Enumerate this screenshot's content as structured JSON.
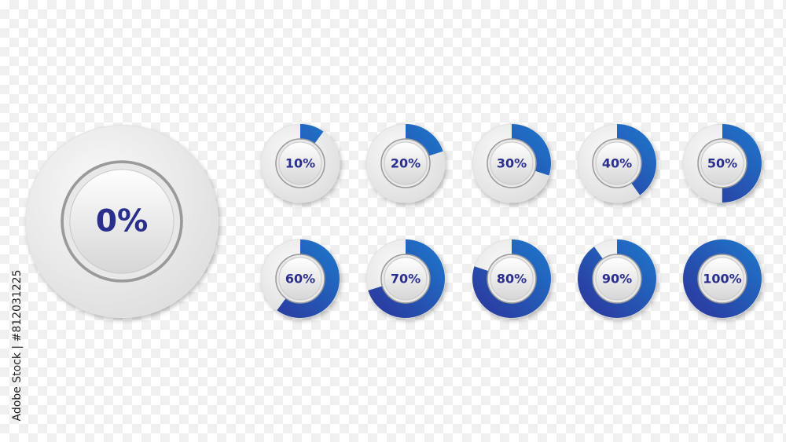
{
  "gauges": [
    {
      "value": 0,
      "label": "0%"
    },
    {
      "value": 10,
      "label": "10%"
    },
    {
      "value": 20,
      "label": "20%"
    },
    {
      "value": 30,
      "label": "30%"
    },
    {
      "value": 40,
      "label": "40%"
    },
    {
      "value": 50,
      "label": "50%"
    },
    {
      "value": 60,
      "label": "60%"
    },
    {
      "value": 70,
      "label": "70%"
    },
    {
      "value": 80,
      "label": "80%"
    },
    {
      "value": 90,
      "label": "90%"
    },
    {
      "value": 100,
      "label": "100%"
    }
  ],
  "watermark": "Adobe Stock | #812031225"
}
